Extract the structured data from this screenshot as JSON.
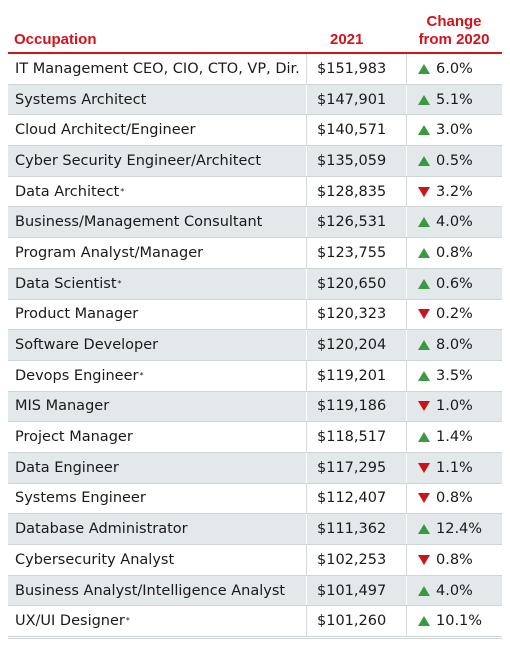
{
  "header": {
    "occupation": "Occupation",
    "year": "2021",
    "change_line1": "Change",
    "change_line2": "from 2020"
  },
  "colors": {
    "accent": "#d4121a",
    "up": "#3a9a3f",
    "down": "#c8141b",
    "stripe": "#e3e8eb"
  },
  "rows": [
    {
      "occupation": "IT Management CEO, CIO, CTO, VP, Dir.",
      "asterisk": "",
      "salary": "$151,983",
      "direction": "up",
      "change": "6.0%"
    },
    {
      "occupation": "Systems Architect",
      "asterisk": "",
      "salary": "$147,901",
      "direction": "up",
      "change": "5.1%"
    },
    {
      "occupation": "Cloud Architect/Engineer",
      "asterisk": "",
      "salary": "$140,571",
      "direction": "up",
      "change": "3.0%"
    },
    {
      "occupation": "Cyber Security Engineer/Architect",
      "asterisk": "",
      "salary": "$135,059",
      "direction": "up",
      "change": "0.5%"
    },
    {
      "occupation": "Data Architect",
      "asterisk": "*",
      "salary": "$128,835",
      "direction": "down",
      "change": "3.2%"
    },
    {
      "occupation": "Business/Management Consultant",
      "asterisk": "",
      "salary": "$126,531",
      "direction": "up",
      "change": "4.0%"
    },
    {
      "occupation": "Program Analyst/Manager",
      "asterisk": "",
      "salary": "$123,755",
      "direction": "up",
      "change": "0.8%"
    },
    {
      "occupation": "Data Scientist",
      "asterisk": "*",
      "salary": "$120,650",
      "direction": "up",
      "change": "0.6%"
    },
    {
      "occupation": "Product Manager",
      "asterisk": "",
      "salary": "$120,323",
      "direction": "down",
      "change": "0.2%"
    },
    {
      "occupation": "Software Developer",
      "asterisk": "",
      "salary": "$120,204",
      "direction": "up",
      "change": "8.0%"
    },
    {
      "occupation": "Devops Engineer",
      "asterisk": "*",
      "salary": "$119,201",
      "direction": "up",
      "change": "3.5%"
    },
    {
      "occupation": "MIS Manager",
      "asterisk": "",
      "salary": "$119,186",
      "direction": "down",
      "change": "1.0%"
    },
    {
      "occupation": "Project Manager",
      "asterisk": "",
      "salary": "$118,517",
      "direction": "up",
      "change": "1.4%"
    },
    {
      "occupation": "Data Engineer",
      "asterisk": "",
      "salary": "$117,295",
      "direction": "down",
      "change": "1.1%"
    },
    {
      "occupation": "Systems Engineer",
      "asterisk": "",
      "salary": "$112,407",
      "direction": "down",
      "change": "0.8%"
    },
    {
      "occupation": "Database Administrator",
      "asterisk": "",
      "salary": "$111,362",
      "direction": "up",
      "change": "12.4%"
    },
    {
      "occupation": "Cybersecurity Analyst",
      "asterisk": "",
      "salary": "$102,253",
      "direction": "down",
      "change": "0.8%"
    },
    {
      "occupation": "Business Analyst/Intelligence Analyst",
      "asterisk": "",
      "salary": "$101,497",
      "direction": "up",
      "change": "4.0%"
    },
    {
      "occupation": "UX/UI Designer",
      "asterisk": "*",
      "salary": "$101,260",
      "direction": "up",
      "change": "10.1%"
    }
  ]
}
